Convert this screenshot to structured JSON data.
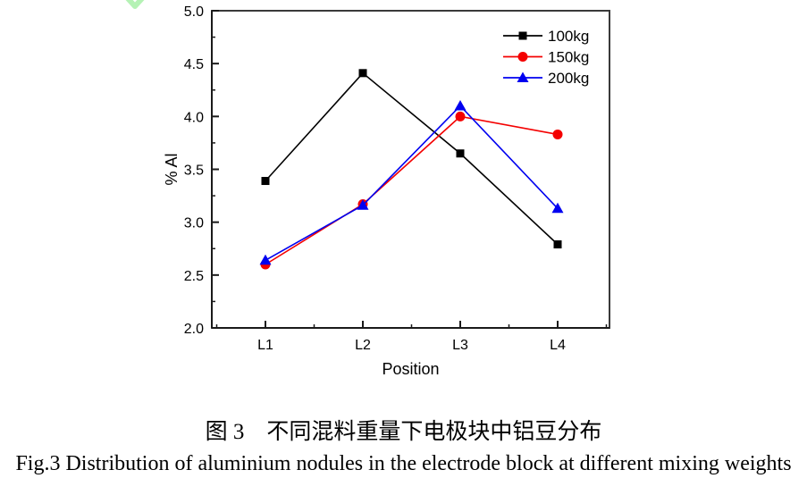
{
  "chart_data": {
    "type": "line",
    "categories": [
      "L1",
      "L2",
      "L3",
      "L4"
    ],
    "series": [
      {
        "name": "100kg",
        "color": "#000000",
        "marker": "square",
        "values": [
          3.39,
          4.41,
          3.65,
          2.79
        ]
      },
      {
        "name": "150kg",
        "color": "#f40000",
        "marker": "circle",
        "values": [
          2.6,
          3.17,
          4.0,
          3.83
        ]
      },
      {
        "name": "200kg",
        "color": "#0000f0",
        "marker": "triangle",
        "values": [
          2.64,
          3.16,
          4.1,
          3.13
        ]
      }
    ],
    "title": "",
    "xlabel": "Position",
    "ylabel": "% Al",
    "ylim": [
      2.0,
      5.0
    ],
    "y_major_step": 0.5,
    "y_minor_step": 0.25,
    "y_tick_labels": [
      "2.0",
      "2.5",
      "3.0",
      "3.5",
      "4.0",
      "4.5",
      "5.0"
    ],
    "legend_position": "top-right-inside",
    "legend_labels": [
      "100kg",
      "150kg",
      "200kg"
    ],
    "grid": false,
    "frame_color": "#3a3a3a",
    "axis_color": "#1a1a1a",
    "text_color": "#000000"
  },
  "annotation_mark": {
    "name": "green-chevron",
    "color": "#b5f2b5"
  },
  "captions": {
    "zh": "图 3　不同混料重量下电极块中铝豆分布",
    "en": "Fig.3 Distribution of aluminium nodules in the electrode block at different mixing weights"
  }
}
